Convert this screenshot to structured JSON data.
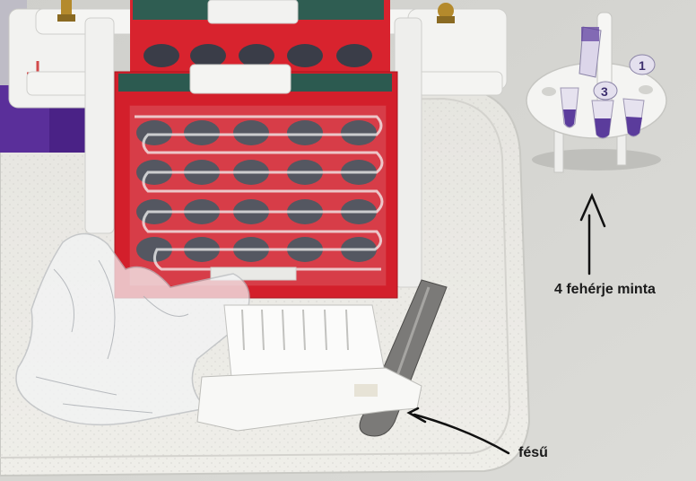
{
  "photo": {
    "subject": "protein gel electrophoresis setup on a lab tray",
    "tube_labels": [
      "1",
      "3"
    ]
  },
  "annotations": {
    "samples_label": "4 fehérje minta",
    "comb_label": "fésű"
  },
  "colors": {
    "tray": "#ecebe6",
    "bench": "#d6d6d2",
    "gel_frame_red": "#d8232e",
    "hole_dark": "#3a3d48",
    "sponge_green": "#2f5d52",
    "purple_sample": "#5b3c9c",
    "annotation_ink": "#1a1a1a"
  }
}
